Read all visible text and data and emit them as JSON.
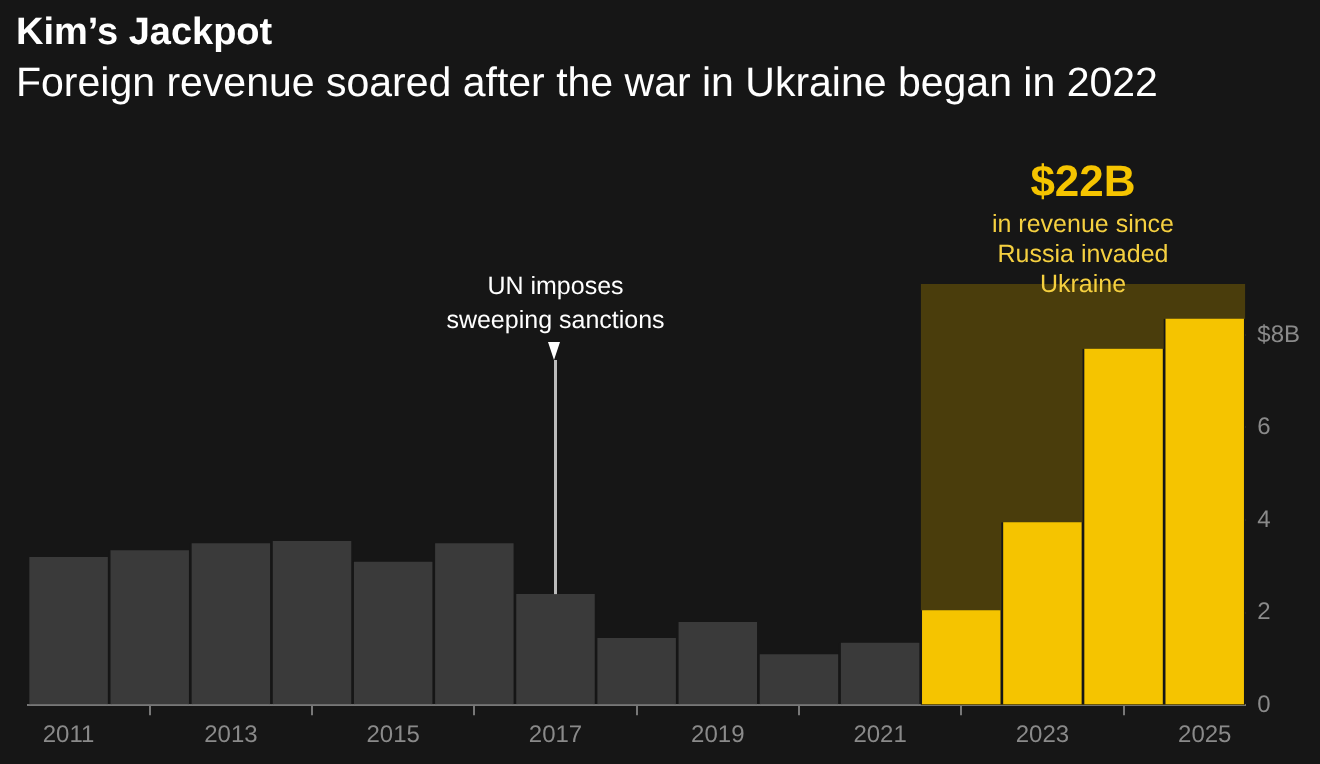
{
  "chart_data": {
    "type": "bar",
    "title": "Kim’s Jackpot",
    "subtitle": "Foreign revenue soared after the war in Ukraine began in 2022",
    "x": [
      2011,
      2012,
      2013,
      2014,
      2015,
      2016,
      2017,
      2018,
      2019,
      2020,
      2021,
      2022,
      2023,
      2024,
      2025
    ],
    "values": [
      3.2,
      3.35,
      3.5,
      3.55,
      3.1,
      3.5,
      2.4,
      1.45,
      1.8,
      1.1,
      1.35,
      2.05,
      3.95,
      7.7,
      8.35
    ],
    "colors": [
      "#3a3a3a",
      "#3a3a3a",
      "#3a3a3a",
      "#3a3a3a",
      "#3a3a3a",
      "#3a3a3a",
      "#3a3a3a",
      "#3a3a3a",
      "#3a3a3a",
      "#3a3a3a",
      "#3a3a3a",
      "#f5c400",
      "#f5c400",
      "#f5c400",
      "#f5c400"
    ],
    "xlim": [
      2010.5,
      2025.5
    ],
    "xticks": [
      2011,
      2013,
      2015,
      2017,
      2019,
      2021,
      2023,
      2025
    ],
    "ylim": [
      0,
      9.1
    ],
    "yticks": [
      0,
      2,
      4,
      6,
      {
        "value": 8,
        "label": "$8B"
      }
    ],
    "bands": [
      {
        "axis": "x",
        "from": 2021.5,
        "to": 2025.5,
        "label": "$22B",
        "color": "#4a3d0c"
      }
    ],
    "ref_lines": [
      {
        "axis": "x",
        "value": 2017,
        "label": "UN imposes sweeping sanctions",
        "color": "#bbbbbb"
      }
    ],
    "annotations": [
      "in revenue since Russia invaded Ukraine"
    ],
    "grid": false,
    "legend": false
  }
}
